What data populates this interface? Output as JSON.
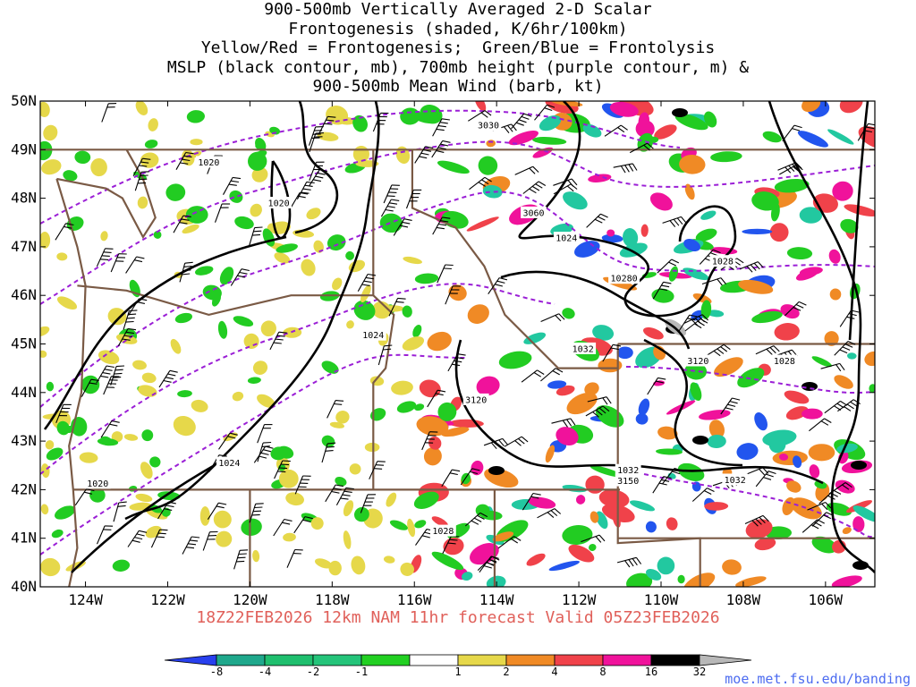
{
  "title": {
    "lines": [
      "900-500mb Vertically Averaged 2-D Scalar",
      "Frontogenesis (shaded, K/6hr/100km)",
      "Yellow/Red = Frontogenesis;  Green/Blue = Frontolysis",
      "MSLP (black contour, mb), 700mb height (purple contour, m) &",
      "900-500mb Mean Wind (barb, kt)"
    ]
  },
  "map": {
    "lat_labels": [
      "50N",
      "49N",
      "48N",
      "47N",
      "46N",
      "45N",
      "44N",
      "43N",
      "42N",
      "41N",
      "40N"
    ],
    "lon_labels": [
      "124W",
      "122W",
      "120W",
      "118W",
      "116W",
      "114W",
      "112W",
      "110W",
      "108W",
      "106W"
    ],
    "lat_range": [
      40,
      50
    ],
    "lon_range": [
      -125.1,
      -104.8
    ],
    "colors": {
      "mslp": "#000000",
      "height700": "#9b1fd6",
      "borders": "#7a5a45",
      "frontogenesis_yellow": "#e6d84a",
      "frontogenesis_orange": "#f08a25",
      "frontogenesis_red": "#f0424a",
      "frontogenesis_magenta": "#f0129b",
      "frontolysis_green": "#22cc22",
      "frontolysis_teal": "#22c8a0",
      "frontolysis_blue": "#2255ee"
    },
    "contour_labels": [
      {
        "text": "1020",
        "lon": -121.0,
        "lat": 48.74
      },
      {
        "text": "1020",
        "lon": -119.3,
        "lat": 47.9
      },
      {
        "text": "3030",
        "lon": -114.2,
        "lat": 49.5
      },
      {
        "text": "3060",
        "lon": -113.1,
        "lat": 47.7
      },
      {
        "text": "1024",
        "lon": -112.3,
        "lat": 47.18
      },
      {
        "text": "1028",
        "lon": -108.5,
        "lat": 46.7
      },
      {
        "text": "10280",
        "lon": -110.9,
        "lat": 46.35
      },
      {
        "text": "1024",
        "lon": -117.0,
        "lat": 45.18
      },
      {
        "text": "1032",
        "lon": -111.9,
        "lat": 44.9
      },
      {
        "text": "3120",
        "lon": -109.1,
        "lat": 44.65
      },
      {
        "text": "1028",
        "lon": -107.0,
        "lat": 44.65
      },
      {
        "text": "3120",
        "lon": -114.5,
        "lat": 43.85
      },
      {
        "text": "1024",
        "lon": -120.5,
        "lat": 42.55
      },
      {
        "text": "1020",
        "lon": -123.7,
        "lat": 42.13
      },
      {
        "text": "1032",
        "lon": -110.8,
        "lat": 42.4
      },
      {
        "text": "3150",
        "lon": -110.8,
        "lat": 42.18
      },
      {
        "text": "1032",
        "lon": -108.2,
        "lat": 42.2
      },
      {
        "text": "1028",
        "lon": -115.3,
        "lat": 41.15
      }
    ]
  },
  "forecast_line": "18Z22FEB2026 12km NAM 11hr forecast Valid 05Z23FEB2026",
  "colorbar": {
    "labels": [
      "-8",
      "-4",
      "-2",
      "-1",
      "1",
      "2",
      "4",
      "8",
      "16",
      "32"
    ],
    "colors": [
      "#2840ee",
      "#1fa88c",
      "#1fbf6e",
      "#24c47a",
      "#22d022",
      "#ffffff",
      "#e6d84a",
      "#f08a25",
      "#f0424a",
      "#f0129b",
      "#000000",
      "#b8b8b8"
    ]
  },
  "credit": "moe.met.fsu.edu/banding"
}
